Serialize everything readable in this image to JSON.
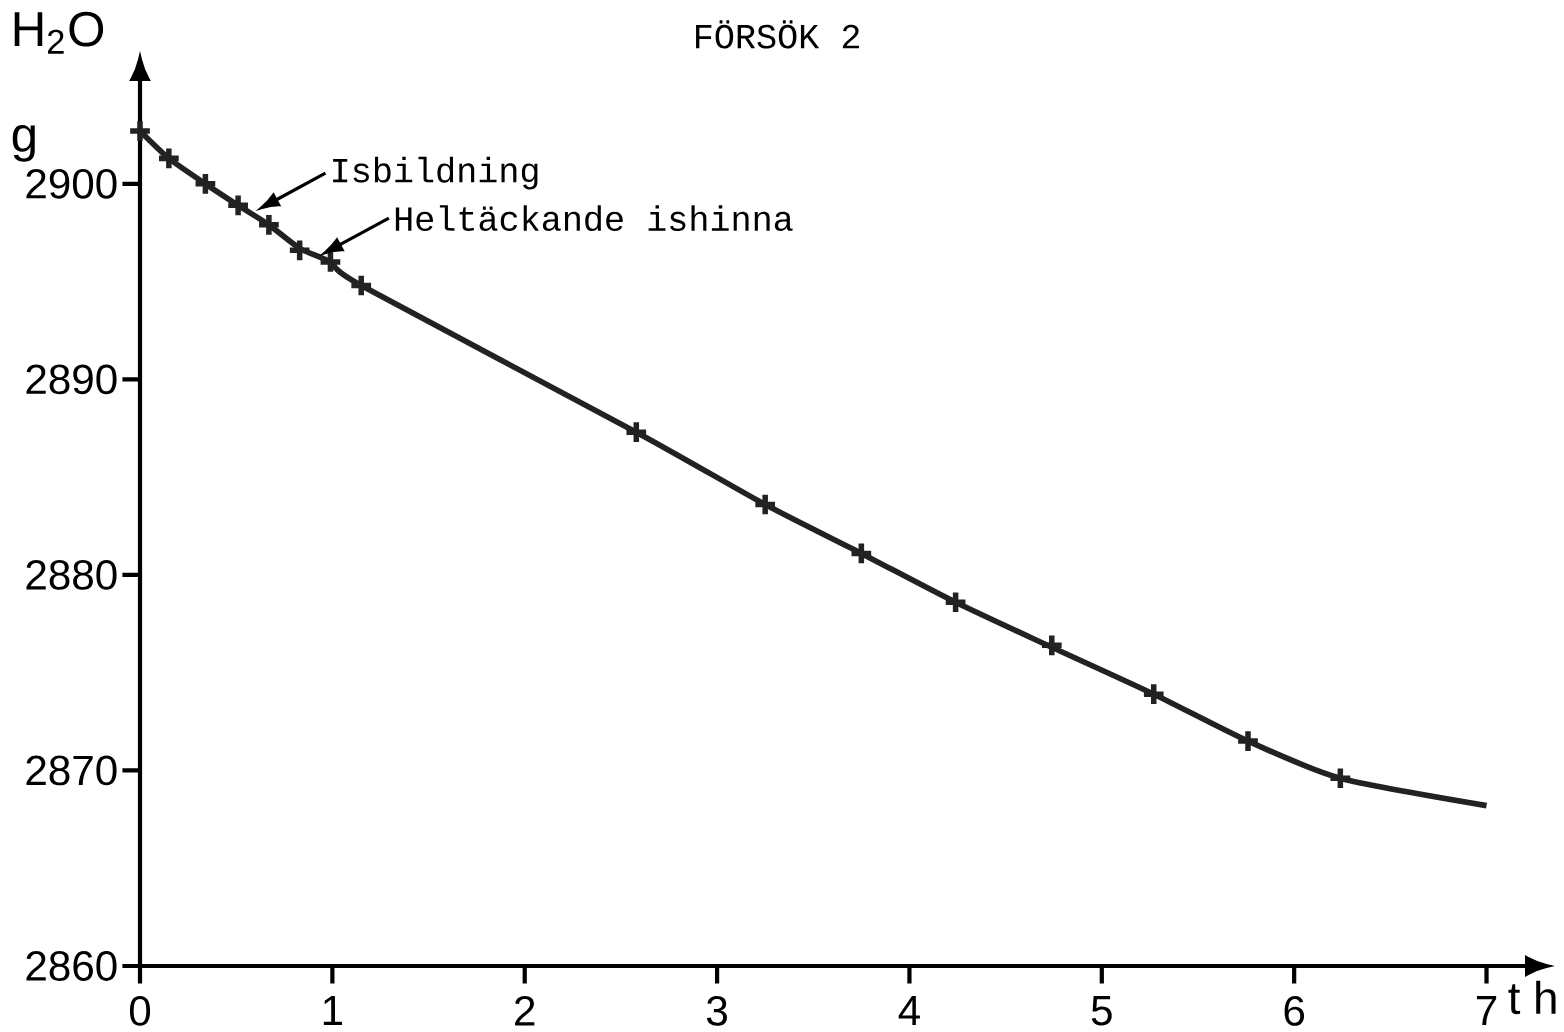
{
  "chart_data": {
    "type": "line",
    "title": "FÖRSÖK 2",
    "xlabel": "t h",
    "ylabel": "H$_{2}$O g",
    "xlim": [
      0,
      7.2
    ],
    "ylim": [
      2860,
      2905
    ],
    "xticks": [
      0,
      1,
      2,
      3,
      4,
      5,
      6,
      7
    ],
    "yticks": [
      2860,
      2870,
      2880,
      2890,
      2900
    ],
    "grid": false,
    "series": [
      {
        "type": "scatter",
        "marker": "cross",
        "color": "#222222",
        "x": [
          0,
          0.15,
          0.34,
          0.51,
          0.67,
          0.83,
          0.99,
          1.15,
          2.58,
          3.25,
          3.75,
          4.24,
          4.74,
          5.27,
          5.76,
          6.24
        ],
        "values": [
          2902.7,
          2901.3,
          2900.0,
          2898.9,
          2897.9,
          2896.6,
          2896.0,
          2894.8,
          2887.3,
          2883.6,
          2881.1,
          2878.6,
          2876.4,
          2873.9,
          2871.5,
          2869.6
        ]
      },
      {
        "marker": "none",
        "color": "#222222",
        "x": [
          0,
          0.15,
          0.34,
          0.51,
          0.67,
          0.83,
          0.99,
          1.15,
          2.58,
          3.25,
          3.75,
          4.24,
          4.74,
          5.27,
          5.76,
          6.24,
          7.0
        ],
        "values": [
          2902.7,
          2901.3,
          2900.0,
          2898.9,
          2897.9,
          2896.7,
          2896.0,
          2894.8,
          2887.3,
          2883.6,
          2881.1,
          2878.6,
          2876.3,
          2873.9,
          2871.5,
          2869.6,
          2868.2
        ]
      }
    ],
    "annotations": [
      {
        "text": "Isbildning",
        "x": 0.6,
        "y": 2898.6
      },
      {
        "text": "Heltäckande ishinna",
        "x": 0.93,
        "y": 2896.3
      }
    ]
  }
}
